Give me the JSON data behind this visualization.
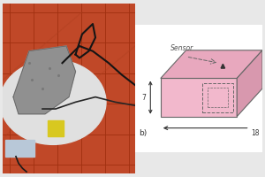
{
  "fig_width": 3.0,
  "fig_height": 2.0,
  "dpi": 100,
  "bg_color": "#e8e8e8",
  "panel_b_bg": "#ffffff",
  "pink_color": "#f2b8cc",
  "pink_top": "#e8a8be",
  "pink_right": "#d898ae",
  "box_border": "#666666",
  "arrow_color": "#333333",
  "sensor_label": "Sensor",
  "dim_7": "7",
  "dim_18": "18",
  "label_b": "b)",
  "dashed_box_color": "#666666",
  "tile_bg": "#c04828",
  "tile_line": "#a03010",
  "white_base": "#d0d0d0",
  "stone_color": "#909090",
  "stone_edge": "#606060"
}
